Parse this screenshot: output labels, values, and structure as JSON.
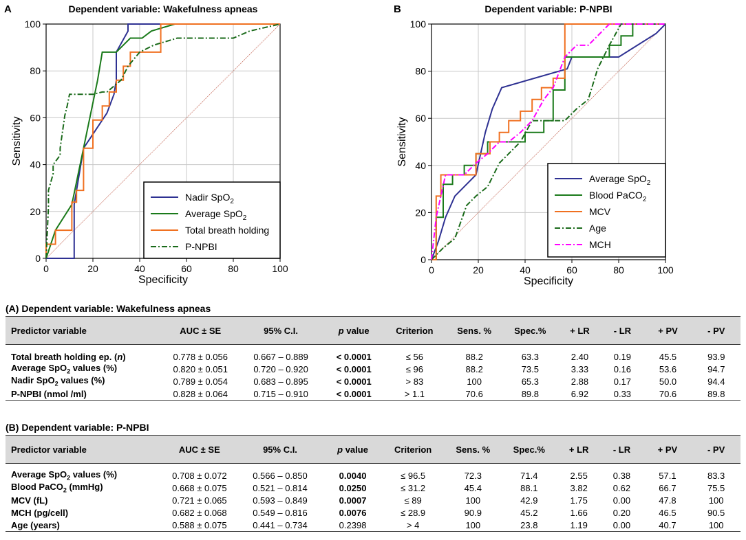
{
  "colors": {
    "nadir": "#2e3192",
    "average": "#1a7a1a",
    "breath": "#f07020",
    "pnpbi": "#1a6a1a",
    "pink": "#ff00ff",
    "diag": "#c87060"
  },
  "chart_data": [
    {
      "type": "line",
      "panel_letter": "A",
      "title": "Dependent variable: Wakefulness apneas",
      "xlabel": "Specificity",
      "ylabel": "Sensitivity",
      "xlim": [
        0,
        100
      ],
      "ylim": [
        0,
        100
      ],
      "xticks": [
        "0",
        "20",
        "40",
        "60",
        "80",
        "100"
      ],
      "yticks": [
        "0",
        "20",
        "40",
        "60",
        "80",
        "100"
      ],
      "grid": true,
      "legend_position": "bottom-right",
      "series": [
        {
          "name": "Nadir SpO",
          "sub": "2",
          "color": "#2e3192",
          "dash": "",
          "x": [
            0,
            12,
            12,
            16,
            20,
            26,
            29,
            30,
            30,
            35,
            35,
            100
          ],
          "y": [
            0,
            0,
            23,
            47,
            53,
            62,
            70,
            76,
            88,
            97,
            100,
            100
          ]
        },
        {
          "name": "Average SpO",
          "sub": "2",
          "color": "#1a7a1a",
          "dash": "",
          "x": [
            0,
            4,
            11,
            16,
            22,
            24,
            27,
            30,
            33,
            36,
            41,
            45,
            55,
            100
          ],
          "y": [
            0,
            12,
            23,
            47,
            76,
            88,
            88,
            88,
            91,
            94,
            94,
            97,
            100,
            100
          ]
        },
        {
          "name": "Total breath holding",
          "sub": "",
          "color": "#f07020",
          "dash": "",
          "x": [
            0,
            0,
            4,
            4,
            11,
            11,
            13,
            13,
            16,
            16,
            20,
            20,
            24,
            24,
            27,
            27,
            30,
            30,
            33,
            33,
            36,
            36,
            41,
            41,
            49,
            49,
            100
          ],
          "y": [
            0,
            6,
            6,
            12,
            12,
            24,
            24,
            29,
            29,
            47,
            47,
            59,
            59,
            65,
            65,
            71,
            71,
            76,
            76,
            82,
            82,
            88,
            88,
            88,
            88,
            100,
            100
          ],
          "step": true
        },
        {
          "name": "P-NPBI",
          "sub": "",
          "color": "#1a6a1a",
          "dash": "8,3,2,3",
          "x": [
            0,
            1,
            1,
            3,
            3,
            6,
            6,
            8,
            9,
            10,
            10,
            16,
            20,
            24,
            26,
            32,
            35,
            40,
            46,
            56,
            64,
            80,
            87,
            100
          ],
          "y": [
            0,
            22,
            29,
            36,
            40,
            44,
            47,
            61,
            65,
            70,
            70,
            70,
            70,
            71,
            71,
            76,
            82,
            88,
            91,
            94,
            94,
            94,
            97,
            100
          ]
        }
      ]
    },
    {
      "type": "line",
      "panel_letter": "B",
      "title": "Dependent variable: P-NPBI",
      "xlabel": "Specificity",
      "ylabel": "Sensitivity",
      "xlim": [
        0,
        100
      ],
      "ylim": [
        0,
        100
      ],
      "xticks": [
        "0",
        "20",
        "40",
        "60",
        "80",
        "100"
      ],
      "yticks": [
        "0",
        "20",
        "40",
        "60",
        "80",
        "100"
      ],
      "grid": true,
      "legend_position": "bottom-right",
      "series": [
        {
          "name": "Average SpO",
          "sub": "2",
          "color": "#2e3192",
          "dash": "",
          "x": [
            0,
            3,
            6,
            10,
            14,
            19,
            23,
            26,
            30,
            58,
            60,
            70,
            80,
            96,
            100
          ],
          "y": [
            0,
            8,
            18,
            27,
            31,
            36,
            54,
            64,
            73,
            81,
            86,
            86,
            86,
            96,
            100
          ],
          "step": false
        },
        {
          "name": "Blood PaCO",
          "sub": "2",
          "color": "#1a7a1a",
          "dash": "",
          "x": [
            0,
            2,
            2,
            5,
            5,
            9,
            9,
            14,
            14,
            19,
            19,
            24,
            24,
            29,
            29,
            40,
            40,
            48,
            48,
            52,
            52,
            57,
            57,
            76,
            76,
            81,
            81,
            86,
            86,
            100
          ],
          "y": [
            0,
            0,
            18,
            18,
            32,
            32,
            36,
            36,
            40,
            40,
            45,
            45,
            50,
            50,
            50,
            50,
            54,
            54,
            59,
            59,
            72,
            72,
            86,
            86,
            91,
            91,
            95,
            95,
            100,
            100
          ],
          "step": true
        },
        {
          "name": "MCV",
          "sub": "",
          "color": "#f07020",
          "dash": "",
          "x": [
            0,
            2,
            2,
            4,
            4,
            19,
            19,
            25,
            25,
            29,
            29,
            33,
            33,
            38,
            38,
            43,
            43,
            47,
            47,
            52,
            52,
            57,
            57,
            100
          ],
          "y": [
            0,
            0,
            27,
            27,
            36,
            36,
            45,
            45,
            50,
            50,
            54,
            54,
            59,
            59,
            63,
            63,
            68,
            68,
            73,
            73,
            77,
            77,
            100,
            100
          ],
          "step": true
        },
        {
          "name": "Age",
          "sub": "",
          "color": "#1a6a1a",
          "dash": "8,3,2,3",
          "x": [
            0,
            5,
            10,
            15,
            19,
            24,
            29,
            33,
            38,
            43,
            48,
            57,
            62,
            67,
            71,
            76,
            81,
            100
          ],
          "y": [
            0,
            5,
            9,
            23,
            27,
            31,
            41,
            45,
            50,
            59,
            59,
            59,
            64,
            68,
            81,
            91,
            100,
            100
          ],
          "step": true
        },
        {
          "name": "MCH",
          "sub": "",
          "color": "#ff00ff",
          "dash": "8,3,2,3",
          "x": [
            0,
            2,
            4,
            6,
            10,
            14,
            19,
            24,
            29,
            33,
            38,
            43,
            48,
            52,
            57,
            62,
            67,
            76,
            81,
            100
          ],
          "y": [
            0,
            18,
            27,
            36,
            36,
            36,
            41,
            45,
            50,
            50,
            54,
            59,
            68,
            73,
            86,
            91,
            91,
            100,
            100,
            100
          ],
          "step": true
        }
      ]
    }
  ],
  "table_a": {
    "title": "(A) Dependent variable: Wakefulness apneas",
    "headers": [
      "Predictor  variable",
      "AUC ± SE",
      "95% C.I.",
      "p value",
      "Criterion",
      "Sens. %",
      "Spec.%",
      "+ LR",
      "- LR",
      "+ PV",
      "- PV"
    ],
    "rows": [
      [
        "Total breath holding ep. (n)",
        "0.778 ± 0.056",
        "0.667 – 0.889",
        "< 0.0001",
        "≤ 56",
        "88.2",
        "63.3",
        "2.40",
        "0.19",
        "45.5",
        "93.9"
      ],
      [
        "Average SpO2 values (%)",
        "0.820 ± 0.051",
        "0.720 – 0.920",
        "< 0.0001",
        "≤ 96",
        "88.2",
        "73.5",
        "3.33",
        "0.16",
        "53.6",
        "94.7"
      ],
      [
        "Nadir SpO2 values (%)",
        "0.789 ± 0.054",
        "0.683 – 0.895",
        "< 0.0001",
        "> 83",
        "100",
        "65.3",
        "2.88",
        "0.17",
        "50.0",
        "94.4"
      ],
      [
        "P-NPBI (nmol /ml)",
        "0.828 ± 0.064",
        "0.715 – 0.910",
        "< 0.0001",
        "> 1.1",
        "70.6",
        "89.8",
        "6.92",
        "0.33",
        "70.6",
        "89.8"
      ]
    ],
    "bold_p": [
      true,
      true,
      true,
      true
    ]
  },
  "table_b": {
    "title": "(B) Dependent variable: P-NPBI",
    "headers": [
      "Predictor  variable",
      "AUC ± SE",
      "95% C.I.",
      "p value",
      "Criterion",
      "Sens. %",
      "Spec.%",
      "+ LR",
      "- LR",
      "+ PV",
      "- PV"
    ],
    "rows": [
      [
        "Average SpO2 values (%)",
        "0.708 ± 0.072",
        "0.566 – 0.850",
        "0.0040",
        "≤ 96.5",
        "72.3",
        "71.4",
        "2.55",
        "0.38",
        "57.1",
        "83.3"
      ],
      [
        "Blood PaCO2 (mmHg)",
        "0.668 ± 0.075",
        "0.521 – 0.814",
        "0.0250",
        "≤ 31.2",
        "45.4",
        "88.1",
        "3.82",
        "0.62",
        "66.7",
        "75.5"
      ],
      [
        "MCV (fL)",
        "0.721 ± 0.065",
        "0.593 – 0.849",
        "0.0007",
        "≤ 89",
        "100",
        "42.9",
        "1.75",
        "0.00",
        "47.8",
        "100"
      ],
      [
        "MCH (pg/cell)",
        "0.682 ± 0.068",
        "0.549 – 0.816",
        "0.0076",
        "≤ 28.9",
        "90.9",
        "45.2",
        "1.66",
        "0.20",
        "46.5",
        "90.5"
      ],
      [
        "Age (years)",
        "0.588 ± 0.075",
        "0.441 – 0.734",
        "0.2398",
        "> 4",
        "100",
        "23.8",
        "1.19",
        "0.00",
        "40.7",
        "100"
      ]
    ],
    "bold_p": [
      true,
      true,
      true,
      true,
      false
    ]
  }
}
